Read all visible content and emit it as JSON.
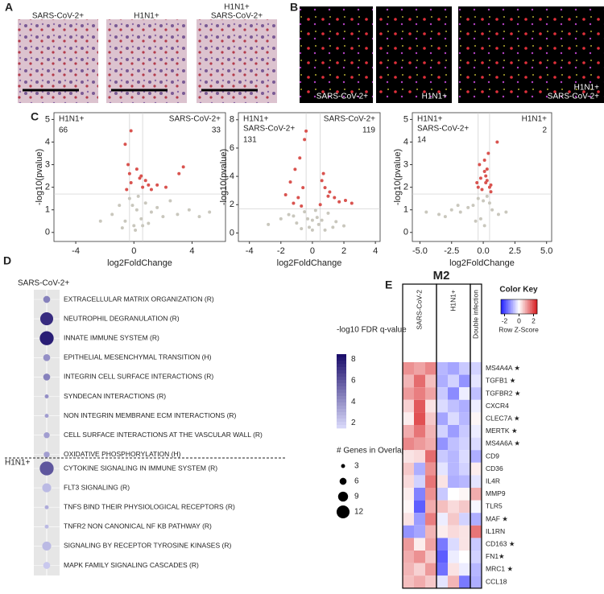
{
  "panel_labels": [
    "A",
    "B",
    "C",
    "D",
    "E"
  ],
  "panel_a": {
    "images": [
      {
        "lines": [
          "SARS-CoV-2+"
        ]
      },
      {
        "lines": [
          "H1N1+"
        ]
      },
      {
        "lines": [
          "H1N1+",
          "SARS-CoV-2+"
        ]
      }
    ]
  },
  "panel_b": {
    "images": [
      {
        "lines": [
          "SARS-CoV-2+"
        ]
      },
      {
        "lines": [
          "H1N1+"
        ]
      },
      {
        "lines": [
          "H1N1+",
          "SARS-CoV-2+"
        ]
      }
    ]
  },
  "chart_data": [
    {
      "type": "scatter",
      "xlabel": "log2FoldChange",
      "ylabel": "-log10(pvalue)",
      "xlim": [
        -5.5,
        6.3
      ],
      "ylim": [
        -0.4,
        5.3
      ],
      "xticks": [
        -4,
        0,
        4
      ],
      "yticks": [
        0,
        1,
        2,
        3,
        4,
        5
      ],
      "hline": 1.7,
      "vlines": [
        -0.3,
        0.6
      ],
      "series": [
        {
          "color": "#c9c7bd",
          "x": [
            -1.5,
            -1,
            -0.6,
            -0.3,
            0,
            0.2,
            0.5,
            0.8,
            1.2,
            1.6,
            2,
            2.5,
            3,
            3.8,
            4.5,
            5.2,
            -2.3,
            -0.8,
            0.3,
            1,
            0.1,
            -0.1,
            0.6
          ],
          "values": [
            0.8,
            1.2,
            0.5,
            1.5,
            0.3,
            1.0,
            0.6,
            1.3,
            0.9,
            1.1,
            0.7,
            1.4,
            0.8,
            1.0,
            0.7,
            0.9,
            0.5,
            0.2,
            1.6,
            0.4,
            0.1,
            1.2,
            0.3
          ]
        },
        {
          "color": "#d9534f",
          "x": [
            -0.6,
            -0.4,
            -0.3,
            -0.2,
            0.2,
            0.4,
            0.6,
            0.8,
            1.2,
            1.6,
            2.2,
            3.1,
            3.4,
            -0.5,
            0.5,
            1.0,
            -0.2
          ],
          "values": [
            3.9,
            3.0,
            2.6,
            2.2,
            2.8,
            2.4,
            2.0,
            2.3,
            1.9,
            2.1,
            2.0,
            2.6,
            2.9,
            1.9,
            2.5,
            2.1,
            4.5
          ]
        }
      ],
      "annotations": [
        {
          "lines": [
            "H1N1+"
          ],
          "count": 66,
          "corner": "left"
        },
        {
          "lines": [
            "SARS-CoV-2+"
          ],
          "count": 33,
          "corner": "right"
        }
      ]
    },
    {
      "type": "scatter",
      "xlabel": "log2FoldChange",
      "ylabel": "-log10(pvalue)",
      "xlim": [
        -4.7,
        4.3
      ],
      "ylim": [
        -0.6,
        8.5
      ],
      "xticks": [
        -4,
        -2,
        0,
        2,
        4
      ],
      "yticks": [
        0,
        2,
        4,
        6,
        8
      ],
      "hline": 1.7,
      "vlines": [
        -0.4,
        0.5
      ],
      "series": [
        {
          "color": "#c9c7bd",
          "x": [
            -2.8,
            -2,
            -1.5,
            -1,
            -0.5,
            0,
            0.3,
            0.6,
            1,
            1.5,
            2,
            -0.2,
            0.2,
            -0.3,
            0.4,
            -0.7,
            0.8,
            -1.2,
            1.3,
            0
          ],
          "values": [
            0.6,
            1.0,
            1.3,
            0.7,
            1.5,
            0.2,
            1.1,
            0.9,
            1.4,
            0.8,
            0.5,
            0.4,
            1.6,
            1.0,
            0.6,
            0.3,
            0.2,
            1.2,
            0.4,
            0.9
          ]
        },
        {
          "color": "#d9534f",
          "x": [
            -0.5,
            -0.8,
            -1.1,
            -1.4,
            -1.7,
            -0.6,
            -0.9,
            -0.4,
            0.6,
            0.8,
            1.1,
            1.4,
            1.7,
            2.1,
            2.5,
            0.7,
            1,
            0.5,
            -1.2,
            -0.7
          ],
          "values": [
            6.6,
            5.3,
            4.5,
            3.6,
            2.7,
            3.2,
            2.5,
            7.2,
            3.7,
            3.2,
            2.9,
            2.5,
            2.2,
            2.3,
            2.1,
            4.2,
            2.6,
            2.0,
            2.1,
            1.9
          ]
        }
      ],
      "annotations": [
        {
          "lines": [
            "H1N1+",
            "SARS-CoV-2+"
          ],
          "count": 131,
          "corner": "left"
        },
        {
          "lines": [
            "SARS-CoV-2+"
          ],
          "count": 119,
          "corner": "right"
        }
      ]
    },
    {
      "type": "scatter",
      "xlabel": "log2FoldChange",
      "ylabel": "-log10(pvalue)",
      "xlim": [
        -5.6,
        5.4
      ],
      "ylim": [
        -0.4,
        5.3
      ],
      "xticks": [
        {
          "value": -5,
          "label": "-5.0"
        },
        {
          "value": -2.5,
          "label": "-2.5"
        },
        {
          "value": 0,
          "label": "0.0"
        },
        {
          "value": 2.5,
          "label": "2.5"
        },
        {
          "value": 5,
          "label": "5.0"
        }
      ],
      "yticks": [
        0,
        1,
        2,
        3,
        4,
        5
      ],
      "hline": 1.7,
      "vlines": [
        -0.4,
        0.5
      ],
      "series": [
        {
          "color": "#c9c7bd",
          "x": [
            -4.5,
            -3.5,
            -2.5,
            -1.8,
            -1.2,
            -0.8,
            -0.4,
            0,
            0.3,
            0.7,
            1.2,
            1.8,
            -0.2,
            0.1,
            -0.6,
            0.5,
            -3,
            -2
          ],
          "values": [
            0.9,
            0.8,
            1.0,
            0.9,
            1.1,
            1.2,
            1.5,
            1.4,
            1.6,
            1.0,
            0.8,
            0.9,
            0.6,
            0.3,
            0.5,
            1.3,
            0.7,
            1.2
          ]
        },
        {
          "color": "#d9534f",
          "x": [
            0.2,
            0.3,
            0.5,
            -0.3,
            -0.5,
            0.1,
            1.1,
            -0.2,
            0.4,
            -0.1,
            0.6,
            0.3,
            -0.4,
            0.2,
            0.1,
            0.6
          ],
          "values": [
            2.5,
            2.3,
            2.0,
            3.0,
            2.2,
            2.7,
            4.0,
            2.4,
            3.5,
            1.9,
            2.1,
            2.8,
            2.0,
            2.2,
            3.2,
            1.8
          ]
        }
      ],
      "annotations": [
        {
          "lines": [
            "H1N1+",
            "SARS-CoV-2+"
          ],
          "count": 14,
          "corner": "left"
        },
        {
          "lines": [
            "H1N1+"
          ],
          "count": 2,
          "corner": "right"
        }
      ]
    },
    {
      "type": "dot",
      "groups": [
        {
          "name": "SARS-CoV-2+",
          "terms": [
            "EXTRACELLULAR MATRIX ORGANIZATION (R)",
            "NEUTROPHIL DEGRANULATION (R)",
            "INNATE IMMUNE SYSTEM (R)",
            "EPITHELIAL MESENCHYMAL TRANSITION (H)",
            "INTEGRIN CELL SURFACE INTERACTIONS (R)",
            "SYNDECAN INTERACTIONS (R)",
            "NON INTEGRIN MEMBRANE ECM INTERACTIONS (R)",
            "CELL SURFACE INTERACTIONS AT THE VASCULAR WALL (R)",
            "OXIDATIVE PHOSPHORYLATION (H)"
          ],
          "fdr": [
            4.5,
            7.5,
            8,
            4,
            4.5,
            4,
            3.5,
            3.5,
            3.5
          ],
          "genes": [
            6,
            12,
            13,
            6,
            6,
            3,
            3,
            5,
            5
          ]
        },
        {
          "name": "H1N1+",
          "terms": [
            "CYTOKINE SIGNALING IN IMMUNE SYSTEM (R)",
            "FLT3 SIGNALING (R)",
            "TNFS BIND THEIR PHYSIOLOGICAL RECEPTORS (R)",
            "TNFR2 NON CANONICAL NF KB PATHWAY (R)",
            "SIGNALING BY RECEPTOR TYROSINE KINASES (R)",
            "MAPK FAMILY SIGNALING CASCADES (R)"
          ],
          "fdr": [
            6,
            2.5,
            3,
            2.5,
            2.5,
            2
          ],
          "genes": [
            13,
            8,
            3,
            3,
            8,
            6
          ]
        }
      ],
      "color_legend": {
        "title": "-log10 FDR q-value",
        "lim": [
          1.5,
          8.5
        ],
        "ticks": [
          2,
          4,
          6,
          8
        ],
        "colors": [
          "#d6d6f8",
          "#1c0f6b"
        ]
      },
      "size_legend": {
        "title": "# Genes in Overlap",
        "ticks": [
          3,
          6,
          9,
          12
        ]
      }
    },
    {
      "type": "heatmap",
      "title": "M2",
      "groups": [
        {
          "name": "SARS-CoV-2",
          "columns": 3
        },
        {
          "name": "H1N1+",
          "columns": 3
        },
        {
          "name": "Double infection",
          "columns": 1
        }
      ],
      "rows": [
        "MS4A4A ★",
        "TGFB1 ★",
        "TGFBR2 ★",
        "CXCR4",
        "CLEC7A ★",
        "MERTK ★",
        "MS4A6A ★",
        "CD9",
        "CD36",
        "IL4R",
        "MMP9",
        "TLR5",
        "MAF ★",
        "IL1RN",
        "CD163 ★",
        "FN1★",
        "MRC1 ★",
        "CCL18"
      ],
      "values": [
        [
          1.2,
          1.0,
          1.3,
          -0.8,
          -1.0,
          -0.6,
          -0.5
        ],
        [
          0.8,
          1.6,
          0.7,
          -0.9,
          -0.5,
          -1.2,
          -0.3
        ],
        [
          1.1,
          1.4,
          1.0,
          -0.6,
          -1.3,
          -0.2,
          -0.7
        ],
        [
          0.5,
          1.8,
          0.3,
          -0.4,
          -0.7,
          -0.9,
          -0.2
        ],
        [
          0.2,
          1.9,
          0.6,
          -1.0,
          -0.4,
          -0.8,
          0.1
        ],
        [
          0.9,
          1.5,
          0.8,
          -0.5,
          -1.1,
          -0.6,
          -0.2
        ],
        [
          1.3,
          1.1,
          0.9,
          -1.2,
          -0.7,
          -0.5,
          -0.4
        ],
        [
          0.3,
          0.4,
          1.6,
          -0.6,
          -0.8,
          -0.4,
          -0.9
        ],
        [
          0.6,
          -0.9,
          1.2,
          -0.3,
          -0.8,
          -0.5,
          0.2
        ],
        [
          0.4,
          -0.5,
          1.5,
          0.3,
          -0.9,
          -0.8,
          -0.3
        ],
        [
          0.2,
          -1.4,
          1.2,
          -0.6,
          0.0,
          0.1,
          0.9
        ],
        [
          0.1,
          -1.8,
          0.9,
          0.7,
          0.4,
          0.6,
          -0.1
        ],
        [
          0.3,
          -1.1,
          1.4,
          -0.2,
          0.6,
          -0.5,
          -0.9
        ],
        [
          -1.2,
          -1.0,
          0.8,
          0.2,
          0.4,
          0.3,
          1.5
        ],
        [
          1.1,
          0.2,
          1.0,
          -1.5,
          -0.4,
          0.3,
          -0.6
        ],
        [
          0.9,
          1.2,
          0.6,
          -1.8,
          -0.2,
          0.0,
          -0.5
        ],
        [
          0.8,
          0.5,
          1.1,
          -1.6,
          0.3,
          -0.2,
          -0.8
        ],
        [
          0.7,
          0.9,
          0.6,
          -0.3,
          0.8,
          -1.5,
          -0.9
        ]
      ],
      "color_key": {
        "title": "Color Key",
        "xlabel": "Row Z-Score",
        "lim": [
          -2.5,
          2.5
        ],
        "ticks": [
          -2,
          0,
          2
        ],
        "colors": [
          "#1f1fff",
          "#ffffff",
          "#d7191c"
        ]
      }
    }
  ]
}
